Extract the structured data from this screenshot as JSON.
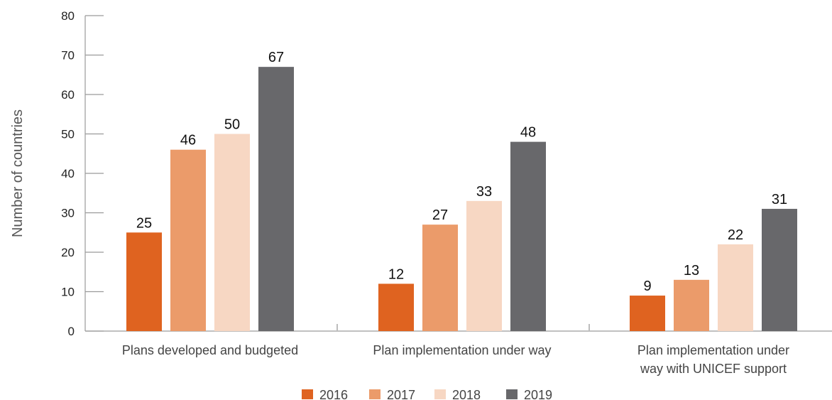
{
  "chart_data": {
    "type": "bar",
    "title": "",
    "xlabel": "",
    "ylabel": "Number of countries",
    "ylim": [
      0,
      80
    ],
    "yticks": [
      0,
      10,
      20,
      30,
      40,
      50,
      60,
      70,
      80
    ],
    "grid": false,
    "legend_position": "bottom-center",
    "categories": [
      [
        "Plans developed and budgeted"
      ],
      [
        "Plan implementation under way"
      ],
      [
        "Plan implementation under",
        "way with UNICEF support"
      ]
    ],
    "series": [
      {
        "name": "2016",
        "color": "#df6320",
        "values": [
          25,
          12,
          9
        ]
      },
      {
        "name": "2017",
        "color": "#eb9b6a",
        "values": [
          46,
          27,
          13
        ]
      },
      {
        "name": "2018",
        "color": "#f7d7c3",
        "values": [
          50,
          33,
          22
        ]
      },
      {
        "name": "2019",
        "color": "#68686b",
        "values": [
          67,
          48,
          31
        ]
      }
    ]
  }
}
